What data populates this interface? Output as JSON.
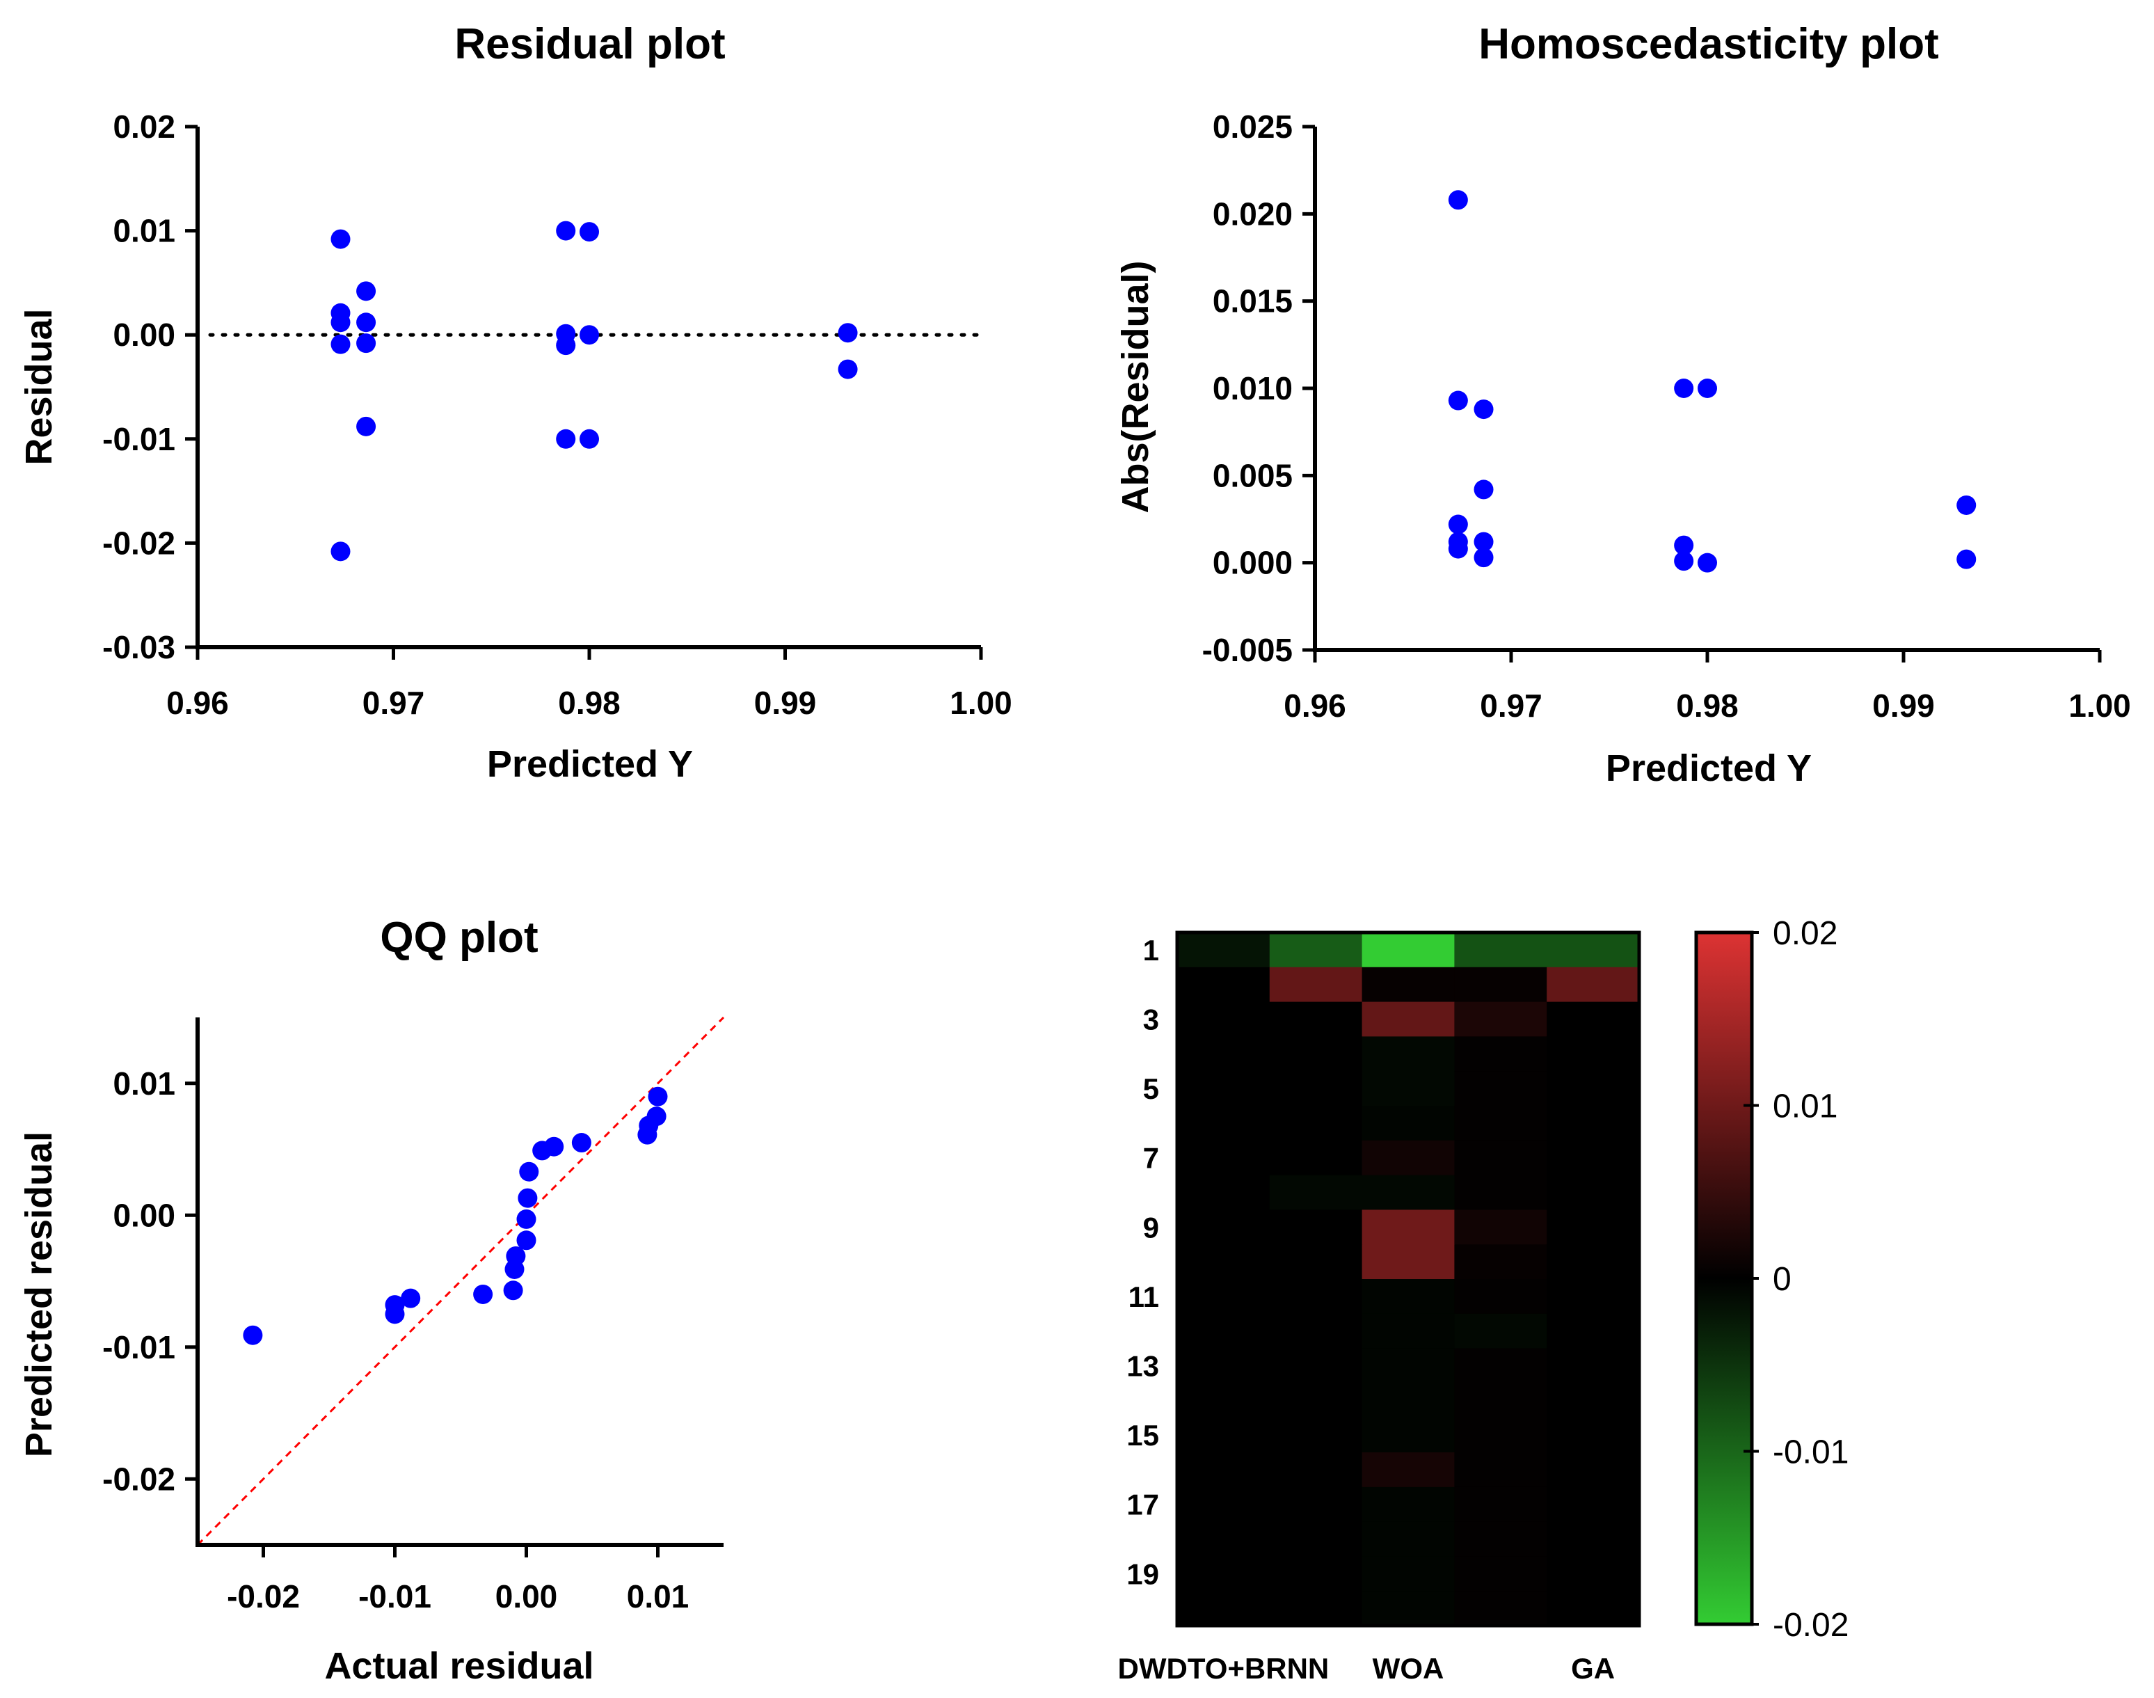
{
  "chart_data": [
    {
      "type": "scatter",
      "title": "Residual plot",
      "xlabel": "Predicted Y",
      "ylabel": "Residual",
      "xlim": [
        0.96,
        1.0
      ],
      "ylim": [
        -0.03,
        0.02
      ],
      "xticks": [
        0.96,
        0.97,
        0.98,
        0.99,
        1.0
      ],
      "xtick_labels": [
        "0.96",
        "0.97",
        "0.98",
        "0.99",
        "1.00"
      ],
      "yticks": [
        -0.03,
        -0.02,
        -0.01,
        0.0,
        0.01,
        0.02
      ],
      "ytick_labels": [
        "-0.03",
        "-0.02",
        "-0.01",
        "0.00",
        "0.01",
        "0.02"
      ],
      "reference_line": {
        "type": "horizontal",
        "y": 0.0,
        "style": "dotted"
      },
      "marker_color": "#0000ff",
      "points": [
        {
          "x": 0.9673,
          "y": 0.0092
        },
        {
          "x": 0.9673,
          "y": 0.0021
        },
        {
          "x": 0.9673,
          "y": 0.0012
        },
        {
          "x": 0.9673,
          "y": -0.0009
        },
        {
          "x": 0.9673,
          "y": -0.0208
        },
        {
          "x": 0.9686,
          "y": 0.0042
        },
        {
          "x": 0.9686,
          "y": 0.0012
        },
        {
          "x": 0.9686,
          "y": -0.0008
        },
        {
          "x": 0.9686,
          "y": -0.0088
        },
        {
          "x": 0.9788,
          "y": 0.01
        },
        {
          "x": 0.9788,
          "y": 0.0001
        },
        {
          "x": 0.9788,
          "y": -0.001
        },
        {
          "x": 0.9788,
          "y": -0.01
        },
        {
          "x": 0.98,
          "y": 0.0099
        },
        {
          "x": 0.98,
          "y": 0.0
        },
        {
          "x": 0.98,
          "y": -0.01
        },
        {
          "x": 0.9932,
          "y": 0.0002
        },
        {
          "x": 0.9932,
          "y": -0.0033
        }
      ]
    },
    {
      "type": "scatter",
      "title": "Homoscedasticity plot",
      "xlabel": "Predicted Y",
      "ylabel": "Abs(Residual)",
      "xlim": [
        0.96,
        1.0
      ],
      "ylim": [
        -0.005,
        0.025
      ],
      "xticks": [
        0.96,
        0.97,
        0.98,
        0.99,
        1.0
      ],
      "xtick_labels": [
        "0.96",
        "0.97",
        "0.98",
        "0.99",
        "1.00"
      ],
      "yticks": [
        -0.005,
        0.0,
        0.005,
        0.01,
        0.015,
        0.02,
        0.025
      ],
      "ytick_labels": [
        "-0.005",
        "0.000",
        "0.005",
        "0.010",
        "0.015",
        "0.020",
        "0.025"
      ],
      "marker_color": "#0000ff",
      "points": [
        {
          "x": 0.9673,
          "y": 0.0208
        },
        {
          "x": 0.9673,
          "y": 0.0093
        },
        {
          "x": 0.9673,
          "y": 0.0022
        },
        {
          "x": 0.9673,
          "y": 0.0012
        },
        {
          "x": 0.9673,
          "y": 0.0008
        },
        {
          "x": 0.9686,
          "y": 0.0088
        },
        {
          "x": 0.9686,
          "y": 0.0042
        },
        {
          "x": 0.9686,
          "y": 0.0012
        },
        {
          "x": 0.9686,
          "y": 0.0003
        },
        {
          "x": 0.9788,
          "y": 0.01
        },
        {
          "x": 0.9788,
          "y": 0.001
        },
        {
          "x": 0.9788,
          "y": 0.0001
        },
        {
          "x": 0.98,
          "y": 0.01
        },
        {
          "x": 0.98,
          "y": 0.0
        },
        {
          "x": 0.9932,
          "y": 0.0033
        },
        {
          "x": 0.9932,
          "y": 0.0002
        }
      ]
    },
    {
      "type": "scatter",
      "title": "QQ plot",
      "xlabel": "Actual residual",
      "ylabel": "Predicted residual",
      "xlim": [
        -0.025,
        0.015
      ],
      "ylim": [
        -0.025,
        0.015
      ],
      "xticks": [
        -0.02,
        -0.01,
        0.0,
        0.01
      ],
      "xtick_labels": [
        "-0.02",
        "-0.01",
        "0.00",
        "0.01"
      ],
      "yticks": [
        -0.02,
        -0.01,
        0.0,
        0.01
      ],
      "ytick_labels": [
        "-0.02",
        "-0.01",
        "0.00",
        "0.01"
      ],
      "reference_line": {
        "type": "identity",
        "style": "dashed",
        "color": "#ff0000"
      },
      "marker_color": "#0000ff",
      "points": [
        {
          "x": -0.0208,
          "y": -0.0091
        },
        {
          "x": -0.01,
          "y": -0.0075
        },
        {
          "x": -0.01,
          "y": -0.0068
        },
        {
          "x": -0.0088,
          "y": -0.0063
        },
        {
          "x": -0.0033,
          "y": -0.006
        },
        {
          "x": -0.001,
          "y": -0.0057
        },
        {
          "x": -0.0009,
          "y": -0.0041
        },
        {
          "x": -0.0008,
          "y": -0.0031
        },
        {
          "x": 0.0,
          "y": -0.0019
        },
        {
          "x": 0.0,
          "y": -0.0003
        },
        {
          "x": 0.0001,
          "y": 0.0013
        },
        {
          "x": 0.0002,
          "y": 0.0033
        },
        {
          "x": 0.0012,
          "y": 0.0049
        },
        {
          "x": 0.0021,
          "y": 0.0052
        },
        {
          "x": 0.0042,
          "y": 0.0055
        },
        {
          "x": 0.0092,
          "y": 0.0061
        },
        {
          "x": 0.0093,
          "y": 0.0068
        },
        {
          "x": 0.0099,
          "y": 0.0075
        },
        {
          "x": 0.01,
          "y": 0.009
        }
      ]
    },
    {
      "type": "heatmap",
      "title": "",
      "rows": 20,
      "row_labels": [
        "1",
        "",
        "3",
        "",
        "5",
        "",
        "7",
        "",
        "9",
        "",
        "11",
        "",
        "13",
        "",
        "15",
        "",
        "17",
        "",
        "19",
        ""
      ],
      "column_labels": [
        "DWDTO+BRNN",
        "",
        "WOA",
        "",
        "GA"
      ],
      "colorscale": {
        "min": -0.02,
        "max": 0.02,
        "mid": 0,
        "low_color": "#33cc33",
        "mid_color": "#000000",
        "high_color": "#dd3333",
        "tick_values": [
          0.02,
          0.01,
          0,
          -0.01,
          -0.02
        ],
        "tick_labels": [
          "0.02",
          "0.01",
          "0",
          "-0.01",
          "-0.02"
        ]
      },
      "values": [
        [
          -0.002,
          -0.009,
          -0.021,
          -0.008,
          -0.008
        ],
        [
          0.0,
          0.009,
          0.0005,
          0.0005,
          0.009
        ],
        [
          0.0,
          0.0,
          0.009,
          0.0025,
          0.0
        ],
        [
          0.0,
          0.0,
          -0.0008,
          0.0003,
          0.0
        ],
        [
          0.0,
          0.0,
          -0.0008,
          0.0003,
          0.0
        ],
        [
          0.0,
          0.0,
          -0.0005,
          0.0003,
          0.0
        ],
        [
          0.0,
          0.0,
          0.0015,
          0.0003,
          0.0
        ],
        [
          0.0,
          -0.0008,
          -0.0008,
          0.0003,
          0.0
        ],
        [
          0.0,
          0.0,
          0.01,
          0.0015,
          0.0
        ],
        [
          0.0,
          0.0,
          0.01,
          0.0005,
          0.0
        ],
        [
          0.0,
          0.0,
          -0.0005,
          0.0003,
          0.0
        ],
        [
          0.0,
          0.0,
          -0.0005,
          -0.0008,
          0.0
        ],
        [
          0.0,
          0.0,
          -0.0005,
          0.0003,
          0.0
        ],
        [
          0.0,
          0.0,
          -0.0005,
          0.0003,
          0.0
        ],
        [
          0.0,
          0.0,
          -0.0005,
          0.0003,
          0.0
        ],
        [
          0.0,
          0.0,
          0.002,
          0.0003,
          0.0
        ],
        [
          0.0,
          0.0,
          -0.0005,
          0.0003,
          0.0
        ],
        [
          0.0,
          0.0,
          -0.0005,
          0.0003,
          0.0
        ],
        [
          0.0,
          0.0,
          -0.0005,
          0.0003,
          0.0
        ],
        [
          0.0,
          0.0,
          -0.0005,
          0.0003,
          0.0
        ]
      ]
    }
  ]
}
